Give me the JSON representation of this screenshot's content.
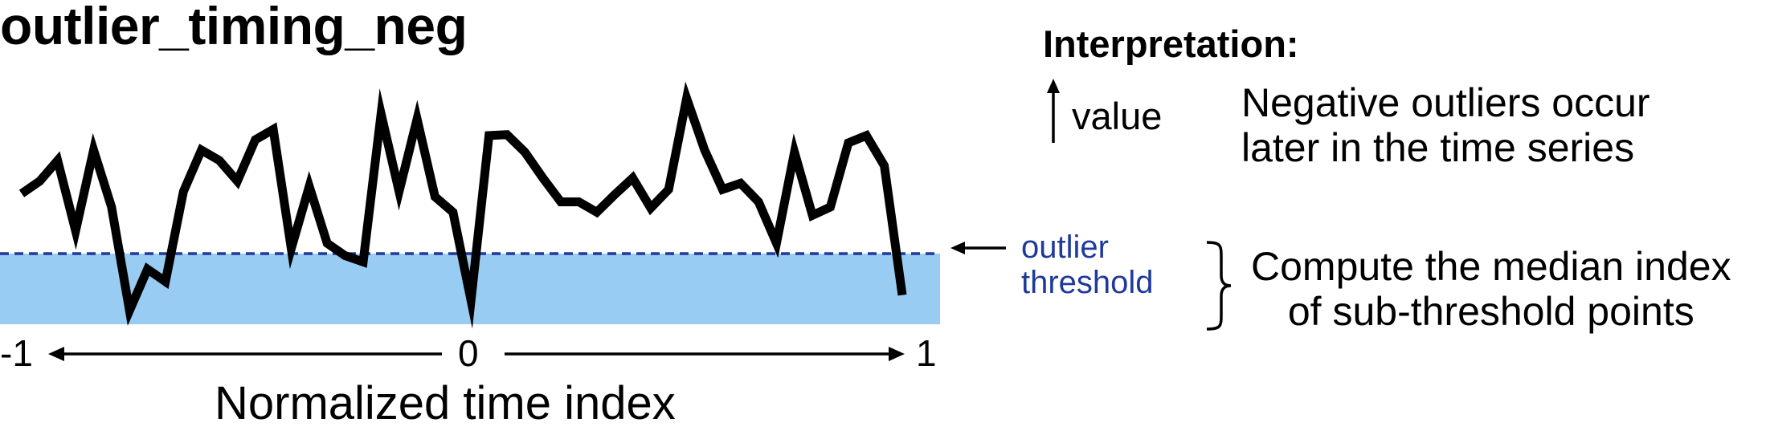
{
  "title": "outlier_timing_neg",
  "interpretation": {
    "heading": "Interpretation:",
    "value_label": "value",
    "line1": "Negative outliers occur",
    "line2": "later in the time series"
  },
  "threshold": {
    "label_line1": "outlier",
    "label_line2": "threshold",
    "color": "#1f3a9c",
    "fill_color": "#99ccf2"
  },
  "compute": {
    "line1": "Compute the median index",
    "line2": "of sub-threshold points"
  },
  "axis": {
    "tick_left": "-1",
    "tick_mid": "0",
    "tick_right": "1",
    "label": "Normalized time index"
  },
  "series": {
    "color": "#000000",
    "x_range": [
      -1,
      1
    ],
    "threshold_value": 0,
    "values": [
      0.58,
      0.7,
      0.9,
      0.22,
      1.0,
      0.45,
      -0.55,
      -0.15,
      -0.27,
      0.6,
      1.0,
      0.9,
      0.7,
      1.1,
      1.2,
      0.05,
      0.65,
      0.1,
      -0.02,
      -0.08,
      1.35,
      0.6,
      1.3,
      0.55,
      0.4,
      -0.45,
      1.14,
      1.15,
      0.98,
      0.73,
      0.5,
      0.5,
      0.4,
      0.57,
      0.73,
      0.44,
      0.62,
      1.5,
      1.0,
      0.62,
      0.68,
      0.5,
      0.1,
      0.98,
      0.37,
      0.45,
      1.07,
      1.14,
      0.85,
      -0.4
    ]
  }
}
